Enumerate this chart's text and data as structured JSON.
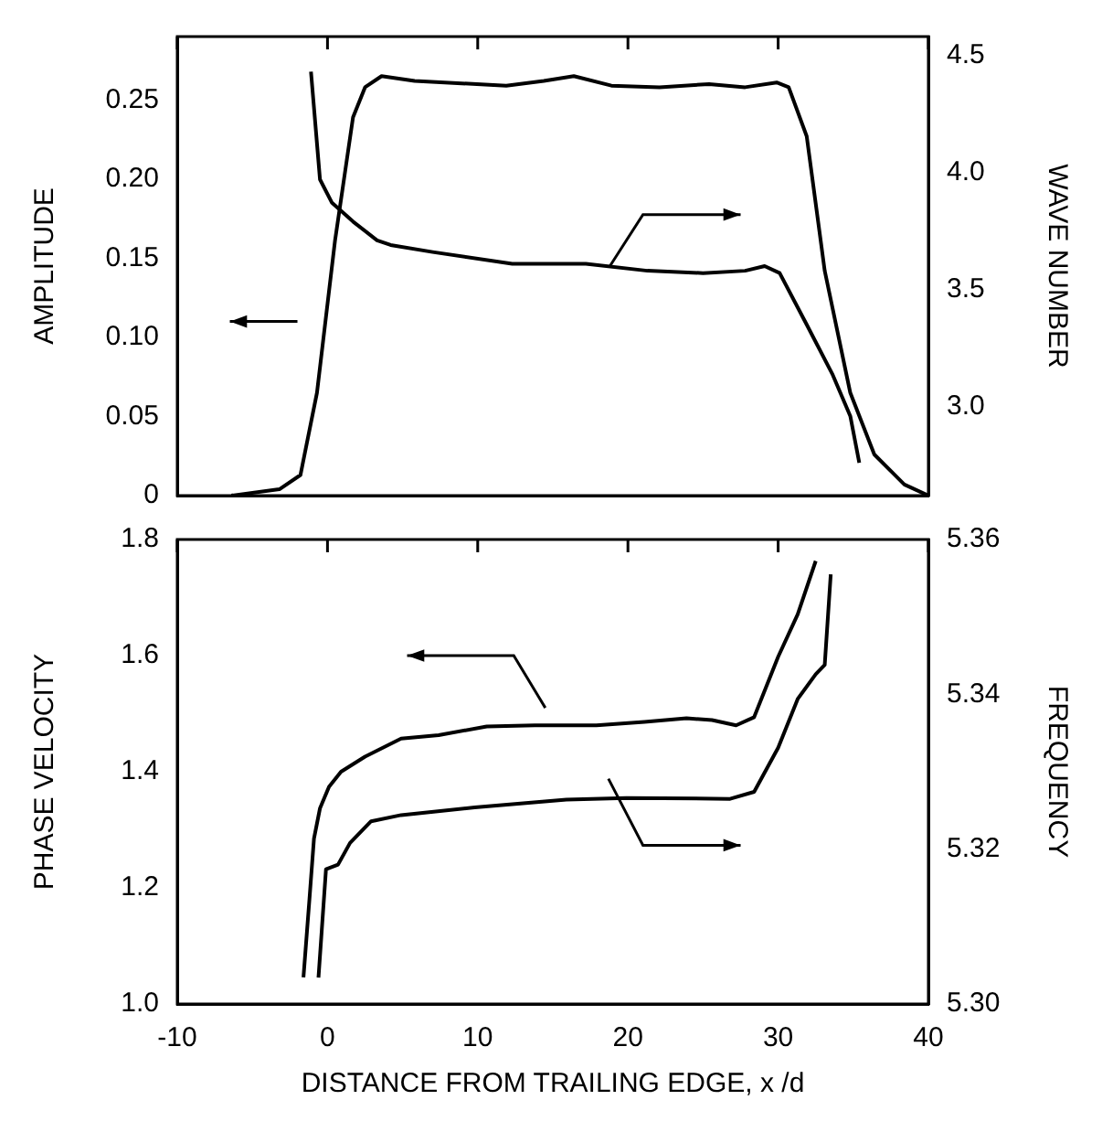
{
  "chart_data": [
    {
      "type": "line",
      "ylabel": "AMPLITUDE",
      "y2label": "WAVE NUMBER",
      "xlim": [
        -10,
        40
      ],
      "xticks": [
        {
          "value": -10,
          "label": null
        },
        {
          "value": 0,
          "label": null
        },
        {
          "value": 10,
          "label": null
        },
        {
          "value": 20,
          "label": null
        },
        {
          "value": 30,
          "label": null
        },
        {
          "value": 40,
          "label": null
        }
      ],
      "ylim": [
        0,
        0.29
      ],
      "yticks": [
        0,
        0.05,
        {
          "value": 0.1,
          "label": "0.10"
        },
        0.15,
        {
          "value": 0.2,
          "label": "0.20"
        },
        0.25
      ],
      "y2lim": [
        2.62,
        4.58
      ],
      "y2ticks": [
        {
          "value": 3,
          "label": "3.0"
        },
        3.5,
        {
          "value": 4,
          "label": "4.0"
        },
        4.5
      ],
      "tick_labels": "y",
      "grid": false,
      "legend": false,
      "marker": "none",
      "line_style": "solid",
      "series": [
        {
          "color": "#000000",
          "x": [
            -6.4,
            -3.2,
            -1.8,
            -0.7,
            0.5,
            1.7,
            2.5,
            3.6,
            5.8,
            11.9,
            14.4,
            16.4,
            18.9,
            22.1,
            25.4,
            27.8,
            29.9,
            30.7,
            31.9,
            33.1,
            34.8,
            36.4,
            38.4,
            40
          ],
          "values": [
            0,
            0.004,
            0.013,
            0.065,
            0.161,
            0.239,
            0.258,
            0.265,
            0.262,
            0.259,
            0.262,
            0.265,
            0.259,
            0.258,
            0.26,
            0.258,
            0.261,
            0.258,
            0.227,
            0.142,
            0.065,
            0.026,
            0.007,
            0
          ]
        },
        {
          "color": "#000000",
          "axis": "y2",
          "x": [
            -1.1,
            -0.5,
            0.3,
            1.7,
            3.3,
            4.2,
            7.0,
            12.3,
            17.2,
            21.3,
            25.0,
            27.8,
            29.1,
            30.1,
            31.9,
            33.6,
            34.8,
            35.4
          ],
          "values": [
            4.43,
            3.97,
            3.87,
            3.79,
            3.71,
            3.69,
            3.66,
            3.61,
            3.61,
            3.58,
            3.57,
            3.58,
            3.6,
            3.57,
            3.35,
            3.14,
            2.96,
            2.76
          ]
        }
      ]
    },
    {
      "type": "line",
      "xlabel": "DISTANCE FROM TRAILING EDGE, x /d",
      "ylabel": "PHASE VELOCITY",
      "y2label": "FREQUENCY",
      "xlim": [
        -10,
        40
      ],
      "xticks": [
        -10,
        0,
        10,
        20,
        30,
        40
      ],
      "ylim": [
        1.0,
        1.8
      ],
      "yticks": [
        {
          "value": 1,
          "label": "1.0"
        },
        1.2,
        1.4,
        1.6,
        1.8
      ],
      "y2lim": [
        5.3,
        5.36
      ],
      "y2ticks": [
        {
          "value": 5.3,
          "label": "5.30"
        },
        5.32,
        5.34,
        5.36
      ],
      "grid": false,
      "legend": false,
      "marker": "none",
      "line_style": "solid",
      "series": [
        {
          "color": "#000000",
          "x": [
            -1.6,
            -1.2,
            -0.9,
            -0.5,
            0.1,
            0.9,
            2.5,
            4.9,
            7.4,
            10.6,
            13.8,
            17.9,
            21.1,
            23.9,
            25.6,
            27.2,
            28.4,
            30.0,
            31.3,
            32.5
          ],
          "values": [
            1.046,
            1.181,
            1.285,
            1.337,
            1.374,
            1.4,
            1.426,
            1.457,
            1.463,
            1.478,
            1.48,
            1.48,
            1.486,
            1.492,
            1.489,
            1.48,
            1.494,
            1.598,
            1.671,
            1.763
          ]
        },
        {
          "color": "#000000",
          "axis": "y2",
          "x": [
            -0.6,
            -0.1,
            0.7,
            1.5,
            2.9,
            4.9,
            9.8,
            15.9,
            19.9,
            26.8,
            28.4,
            30.0,
            31.3,
            32.5,
            33.1,
            33.5
          ],
          "values": [
            5.3034,
            5.3174,
            5.318,
            5.3208,
            5.3236,
            5.3244,
            5.3254,
            5.3264,
            5.3266,
            5.3265,
            5.3274,
            5.3331,
            5.3394,
            5.3426,
            5.3438,
            5.3555
          ]
        }
      ]
    }
  ]
}
